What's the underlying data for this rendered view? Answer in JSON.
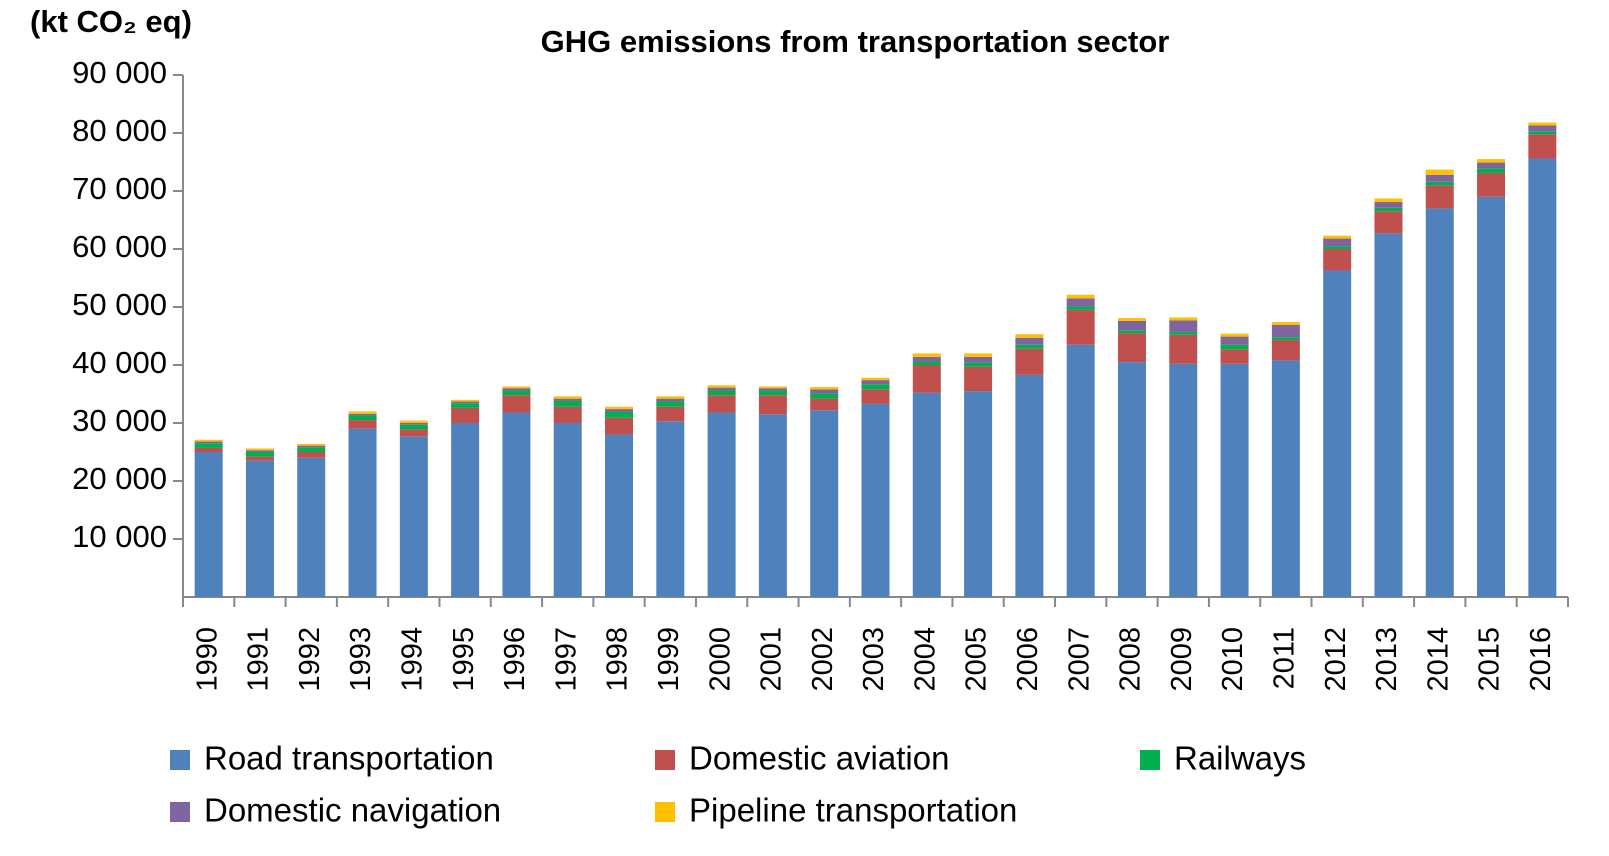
{
  "chart_data": {
    "type": "bar",
    "stacked": true,
    "title": "GHG emissions from transportation sector",
    "y_label": "(kt CO₂ eq)",
    "categories": [
      "1990",
      "1991",
      "1992",
      "1993",
      "1994",
      "1995",
      "1996",
      "1997",
      "1998",
      "1999",
      "2000",
      "2001",
      "2002",
      "2003",
      "2004",
      "2005",
      "2006",
      "2007",
      "2008",
      "2009",
      "2010",
      "2011",
      "2012",
      "2013",
      "2014",
      "2015",
      "2016"
    ],
    "series": [
      {
        "name": "Road transportation",
        "color": "#4f81bd",
        "values": [
          25000,
          23500,
          24000,
          29000,
          27700,
          30000,
          31800,
          30000,
          28000,
          30300,
          31800,
          31500,
          32200,
          33300,
          35200,
          35500,
          38300,
          43500,
          40500,
          40200,
          40200,
          40800,
          56300,
          62700,
          67000,
          69000,
          75600
        ]
      },
      {
        "name": "Domestic aviation",
        "color": "#c0504d",
        "values": [
          700,
          700,
          1000,
          1500,
          1200,
          2600,
          3000,
          2800,
          2900,
          2500,
          3000,
          3300,
          2000,
          2500,
          4800,
          4200,
          4500,
          6000,
          5000,
          5000,
          2500,
          3500,
          3700,
          3800,
          4000,
          4100,
          4200
        ]
      },
      {
        "name": "Railways",
        "color": "#00b050",
        "values": [
          800,
          800,
          800,
          800,
          800,
          800,
          800,
          1000,
          1000,
          900,
          800,
          800,
          900,
          900,
          600,
          700,
          700,
          600,
          500,
          500,
          800,
          500,
          500,
          600,
          600,
          800,
          500
        ]
      },
      {
        "name": "Domestic navigation",
        "color": "#8064a2",
        "values": [
          300,
          300,
          300,
          300,
          300,
          300,
          400,
          400,
          500,
          500,
          500,
          400,
          700,
          700,
          800,
          1000,
          1200,
          1400,
          1600,
          2000,
          1400,
          2100,
          1300,
          1000,
          1200,
          1000,
          1000
        ]
      },
      {
        "name": "Pipeline transportation",
        "color": "#ffc000",
        "values": [
          300,
          300,
          300,
          400,
          400,
          300,
          300,
          400,
          400,
          400,
          400,
          300,
          400,
          400,
          600,
          600,
          600,
          600,
          500,
          500,
          500,
          500,
          500,
          600,
          900,
          600,
          500
        ]
      }
    ],
    "ylim": [
      0,
      90000
    ],
    "yticks": [
      {
        "value": 10000,
        "label": "10 000"
      },
      {
        "value": 20000,
        "label": "20 000"
      },
      {
        "value": 30000,
        "label": "30 000"
      },
      {
        "value": 40000,
        "label": "40 000"
      },
      {
        "value": 50000,
        "label": "50 000"
      },
      {
        "value": 60000,
        "label": "60 000"
      },
      {
        "value": 70000,
        "label": "70 000"
      },
      {
        "value": 80000,
        "label": "80 000"
      },
      {
        "value": 90000,
        "label": "90 000"
      }
    ],
    "legend": "bottom"
  }
}
